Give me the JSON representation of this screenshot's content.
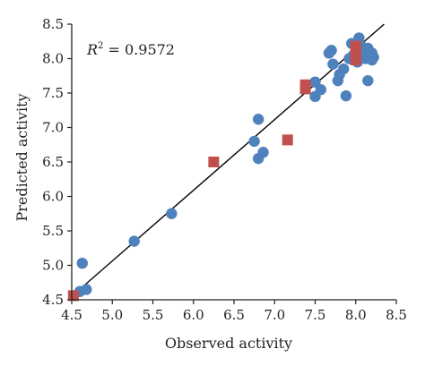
{
  "chart_data": {
    "type": "scatter",
    "title": "",
    "xlabel": "Observed activity",
    "ylabel": "Predicted activity",
    "xlim": [
      4.5,
      8.5
    ],
    "ylim": [
      4.5,
      8.5
    ],
    "xticks": [
      "4.5",
      "5.0",
      "5.5",
      "6.0",
      "6.5",
      "7.0",
      "7.5",
      "8.0",
      "8.5"
    ],
    "yticks": [
      "4.5",
      "5.0",
      "5.5",
      "6.0",
      "6.5",
      "7.0",
      "7.5",
      "8.0",
      "8.5"
    ],
    "xtick_values": [
      4.5,
      5.0,
      5.5,
      6.0,
      6.5,
      7.0,
      7.5,
      8.0,
      8.5
    ],
    "ytick_values": [
      4.5,
      5.0,
      5.5,
      6.0,
      6.5,
      7.0,
      7.5,
      8.0,
      8.5
    ],
    "annotation": {
      "r_symbol": "R",
      "r_superscript": "2",
      "r_value_text": " = 0.9572"
    },
    "grid": false,
    "fit_line": {
      "x": [
        4.5,
        8.35
      ],
      "y": [
        4.55,
        8.5
      ]
    },
    "series": [
      {
        "marker": "circle",
        "color": "#4f81bd",
        "points": [
          [
            4.63,
            5.03
          ],
          [
            4.6,
            4.62
          ],
          [
            4.68,
            4.65
          ],
          [
            5.27,
            5.35
          ],
          [
            5.73,
            5.75
          ],
          [
            6.75,
            6.8
          ],
          [
            6.8,
            7.12
          ],
          [
            6.8,
            6.55
          ],
          [
            6.86,
            6.64
          ],
          [
            7.5,
            7.45
          ],
          [
            7.5,
            7.66
          ],
          [
            7.57,
            7.55
          ],
          [
            7.67,
            8.08
          ],
          [
            7.7,
            8.12
          ],
          [
            7.72,
            7.92
          ],
          [
            7.78,
            7.68
          ],
          [
            7.8,
            7.77
          ],
          [
            7.85,
            7.85
          ],
          [
            7.88,
            7.46
          ],
          [
            7.92,
            8.0
          ],
          [
            7.95,
            8.22
          ],
          [
            7.97,
            8.05
          ],
          [
            8.0,
            8.1
          ],
          [
            8.02,
            7.95
          ],
          [
            8.04,
            8.3
          ],
          [
            8.07,
            8.18
          ],
          [
            8.1,
            8.05
          ],
          [
            8.12,
            8.0
          ],
          [
            8.15,
            8.15
          ],
          [
            8.15,
            7.68
          ],
          [
            8.18,
            8.0
          ],
          [
            8.2,
            8.08
          ],
          [
            8.22,
            8.02
          ],
          [
            8.2,
            7.98
          ],
          [
            7.99,
            8.02
          ]
        ]
      },
      {
        "marker": "square",
        "color": "#c0504d",
        "points": [
          [
            4.52,
            4.56
          ],
          [
            6.25,
            6.5
          ],
          [
            7.16,
            6.82
          ],
          [
            7.38,
            7.62
          ],
          [
            7.38,
            7.56
          ],
          [
            8.0,
            8.18
          ],
          [
            8.0,
            8.1
          ],
          [
            8.0,
            8.03
          ],
          [
            8.0,
            7.98
          ]
        ]
      }
    ]
  }
}
